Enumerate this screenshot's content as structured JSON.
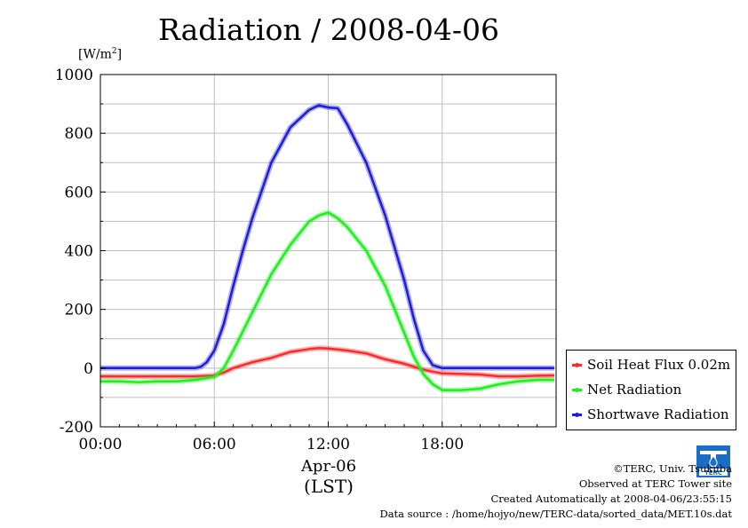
{
  "title": "Radiation / 2008-04-06",
  "unit": {
    "base": "[W/m",
    "sup": "2",
    "close": "]"
  },
  "x_date": "Apr-06",
  "x_tz": "(LST)",
  "credits": {
    "line1": "©TERC, Univ. Tsukuba",
    "line2": "Observed at TERC Tower site",
    "line3": "Created Automatically at 2008-04-06/23:55:15",
    "line4": "Data source : /home/hojyo/new/TERC-data/sorted_data/MET.10s.dat"
  },
  "logo": {
    "text": "TERC",
    "icon": "terc-logo-icon"
  },
  "colors": {
    "soil": "#ff2a2a",
    "net": "#1fef1f",
    "sw": "#1e1ed8",
    "grid": "#bfbfbf"
  },
  "chart_data": {
    "type": "line",
    "title": "Radiation / 2008-04-06",
    "ylabel": "[W/m2]",
    "xlabel": "Apr-06 (LST)",
    "ylim": [
      -200,
      1000
    ],
    "xlim_hours": [
      0,
      24
    ],
    "grid": true,
    "legend_position": "bottom-right-outside",
    "x_ticks": [
      "00:00",
      "06:00",
      "12:00",
      "18:00"
    ],
    "y_ticks": [
      "-200",
      "0",
      "200",
      "400",
      "600",
      "800",
      "1000"
    ],
    "series": [
      {
        "name": "Soil Heat Flux 0.02m",
        "color": "#ff2a2a",
        "x": [
          0,
          2,
          4,
          5,
          6,
          6.5,
          7,
          8,
          9,
          10,
          11,
          11.5,
          12,
          13,
          14,
          15,
          16,
          17,
          17.5,
          18,
          19,
          20,
          21,
          22,
          23,
          23.9
        ],
        "y": [
          -28,
          -28,
          -28,
          -28,
          -25,
          -15,
          0,
          20,
          35,
          55,
          65,
          68,
          67,
          60,
          50,
          30,
          15,
          -5,
          -12,
          -18,
          -20,
          -22,
          -28,
          -28,
          -26,
          -25
        ]
      },
      {
        "name": "Net Radiation",
        "color": "#1fef1f",
        "x": [
          0,
          1,
          2,
          3,
          4,
          5,
          5.5,
          6,
          6.5,
          7,
          8,
          9,
          10,
          11,
          11.5,
          12,
          12.5,
          13,
          14,
          15,
          16,
          16.5,
          17,
          17.5,
          18,
          19,
          20,
          21,
          22,
          23,
          23.9
        ],
        "y": [
          -45,
          -45,
          -48,
          -45,
          -45,
          -40,
          -35,
          -30,
          0,
          60,
          190,
          320,
          420,
          500,
          520,
          530,
          510,
          480,
          400,
          280,
          120,
          40,
          -20,
          -55,
          -75,
          -75,
          -70,
          -55,
          -45,
          -40,
          -40
        ]
      },
      {
        "name": "Shortwave Radiation",
        "color": "#1e1ed8",
        "x": [
          0,
          2,
          4,
          5,
          5.3,
          5.6,
          6,
          6.5,
          7,
          7.5,
          8,
          9,
          10,
          11,
          11.5,
          12,
          12.5,
          13,
          14,
          15,
          16,
          16.5,
          17,
          17.5,
          18,
          19,
          20,
          22,
          23.9
        ],
        "y": [
          0,
          0,
          0,
          0,
          5,
          20,
          60,
          150,
          280,
          400,
          510,
          700,
          820,
          880,
          895,
          888,
          885,
          830,
          700,
          520,
          300,
          170,
          60,
          10,
          0,
          0,
          0,
          0,
          0
        ]
      }
    ]
  }
}
